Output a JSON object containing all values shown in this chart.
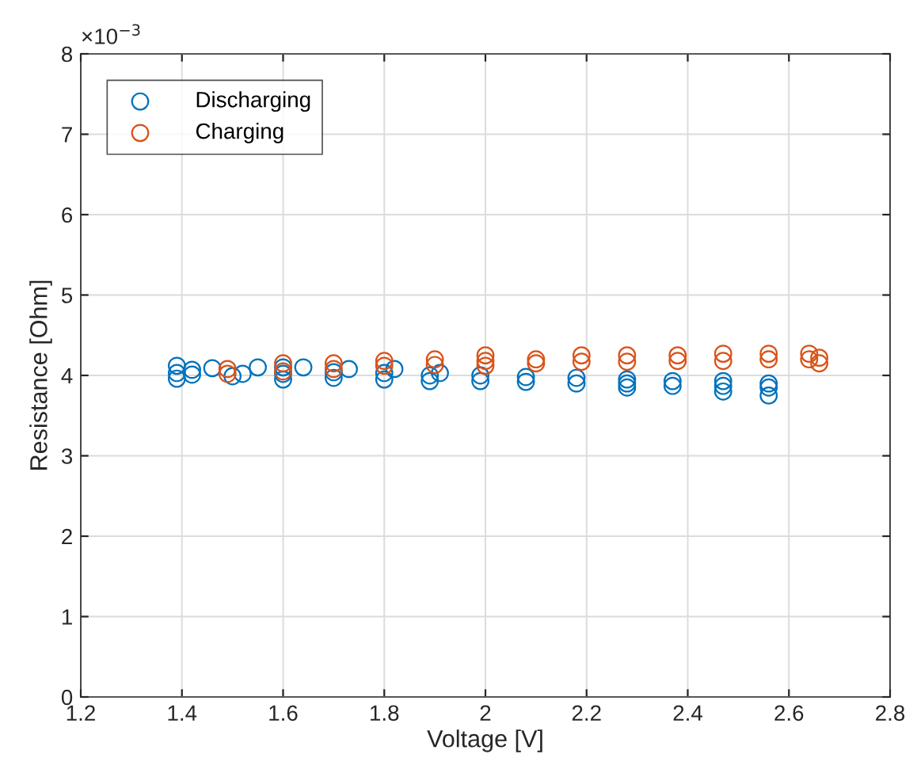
{
  "chart_data": {
    "type": "scatter",
    "xlabel": "Voltage [V]",
    "ylabel": "Resistance [Ohm]",
    "annotations": [
      "×10$^{−3}$"
    ],
    "xlim": [
      1.2,
      2.8
    ],
    "xticks": [
      1.2,
      1.4,
      1.6,
      1.8,
      2,
      2.2,
      2.4,
      2.6,
      2.8
    ],
    "ylim": [
      0,
      8
    ],
    "yticks": [
      0,
      1,
      2,
      3,
      4,
      5,
      6,
      7,
      8
    ],
    "grid": true,
    "legend": "top left",
    "marker": "circle",
    "series": [
      {
        "name": "Discharging",
        "color": "#0072bd",
        "x": [
          1.39,
          1.39,
          1.39,
          1.42,
          1.42,
          1.46,
          1.5,
          1.52,
          1.55,
          1.6,
          1.6,
          1.6,
          1.64,
          1.7,
          1.7,
          1.73,
          1.8,
          1.8,
          1.82,
          1.89,
          1.89,
          1.91,
          1.99,
          1.99,
          2.08,
          2.08,
          2.18,
          2.18,
          2.28,
          2.28,
          2.28,
          2.37,
          2.37,
          2.47,
          2.47,
          2.47,
          2.56,
          2.56,
          2.56
        ],
        "values": [
          3.96,
          4.03,
          4.12,
          4.01,
          4.07,
          4.09,
          3.99,
          4.02,
          4.1,
          3.95,
          4.02,
          4.1,
          4.1,
          3.97,
          4.04,
          4.08,
          3.95,
          4.03,
          4.08,
          3.93,
          4.0,
          4.03,
          3.93,
          4.0,
          3.92,
          3.98,
          3.9,
          3.97,
          3.85,
          3.9,
          3.95,
          3.87,
          3.93,
          3.8,
          3.87,
          3.93,
          3.75,
          3.85,
          3.9
        ]
      },
      {
        "name": "Charging",
        "color": "#d95319",
        "x": [
          1.49,
          1.49,
          1.6,
          1.6,
          1.7,
          1.7,
          1.8,
          1.8,
          1.9,
          1.9,
          2.0,
          2.0,
          2.0,
          2.1,
          2.1,
          2.19,
          2.19,
          2.28,
          2.28,
          2.38,
          2.38,
          2.47,
          2.47,
          2.56,
          2.56,
          2.64,
          2.64,
          2.66,
          2.66
        ],
        "values": [
          4.02,
          4.08,
          4.05,
          4.15,
          4.08,
          4.15,
          4.12,
          4.18,
          4.13,
          4.2,
          4.12,
          4.18,
          4.25,
          4.15,
          4.2,
          4.17,
          4.25,
          4.17,
          4.25,
          4.18,
          4.25,
          4.18,
          4.27,
          4.2,
          4.27,
          4.2,
          4.27,
          4.15,
          4.22
        ]
      }
    ]
  }
}
